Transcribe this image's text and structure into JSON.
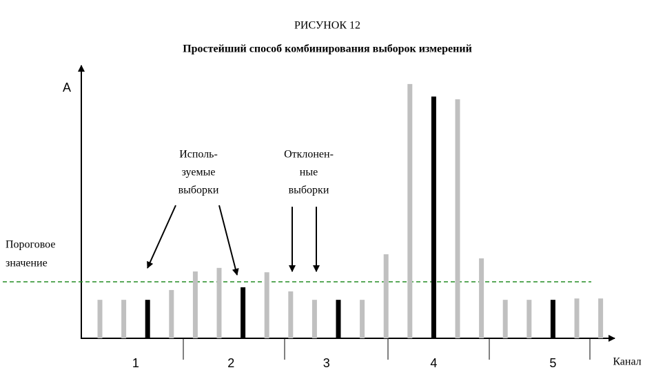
{
  "chart_data": {
    "type": "bar",
    "title": "РИСУНОК 12",
    "subtitle": "Простейший способ комбинирования выборок измерений",
    "y_label": "A",
    "x_label": "Канал",
    "ylim": [
      0,
      100
    ],
    "groups": [
      {
        "label": "1",
        "values": [
          14.1,
          14.1,
          14.1,
          17.7
        ]
      },
      {
        "label": "2",
        "values": [
          24.5,
          25.8,
          18.7,
          24.2
        ]
      },
      {
        "label": "3",
        "values": [
          17.2,
          14.1,
          14.1,
          14.1
        ]
      },
      {
        "label": "4",
        "values": [
          30.8,
          93.2,
          88.6,
          87.6,
          29.3
        ]
      },
      {
        "label": "5",
        "values": [
          14.1,
          14.1,
          14.1,
          14.6,
          14.6
        ]
      }
    ],
    "colors": {
      "normal": "#c0c0c0",
      "selected": "#000000"
    },
    "selected_index": 2,
    "threshold": {
      "value": 20.7,
      "color": "#228b22",
      "label": [
        "Пороговое",
        "значение"
      ]
    },
    "annotations": [
      {
        "lines": [
          "Исполь-",
          "зуемые",
          "выборки"
        ]
      },
      {
        "lines": [
          "Отклонен-",
          "ные",
          "выборки"
        ]
      }
    ]
  }
}
